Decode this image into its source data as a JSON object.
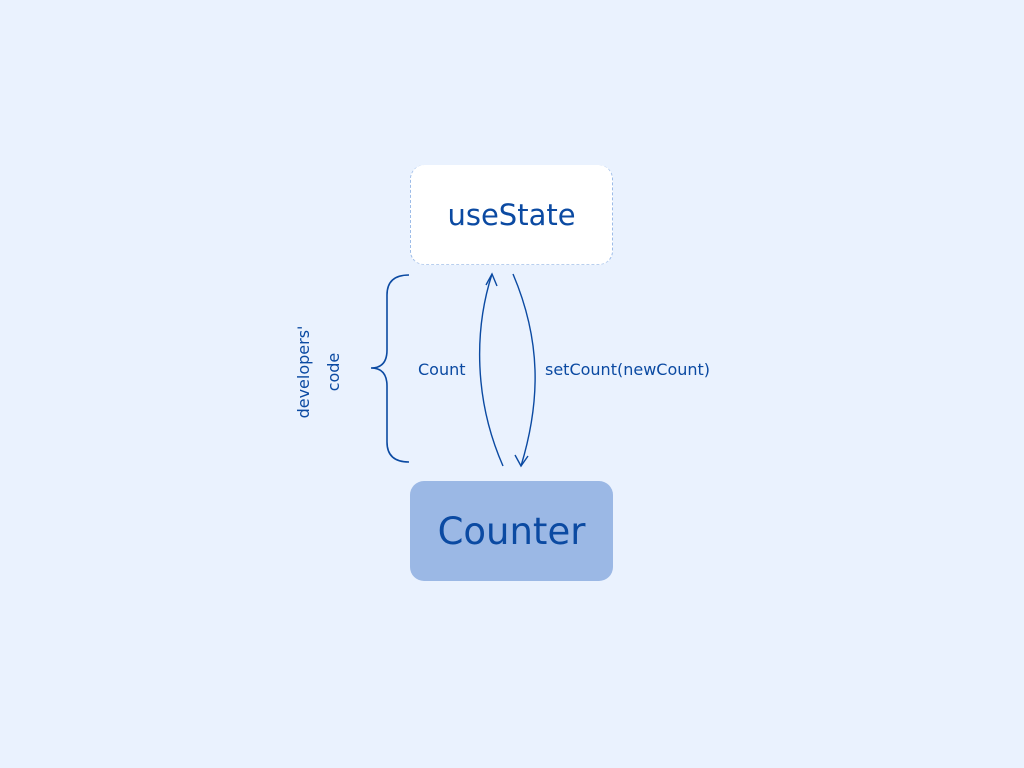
{
  "diagram": {
    "top_node": {
      "label": "useState"
    },
    "bottom_node": {
      "label": "Counter"
    },
    "edges": {
      "up_label": "Count",
      "down_label": "setCount(newCount)"
    },
    "brace": {
      "line1": "developers'",
      "line2": "code"
    }
  },
  "colors": {
    "background": "#eaf2fe",
    "text": "#0b4aa2",
    "top_node_fill": "#ffffff",
    "bottom_node_fill": "#9bb8e5"
  }
}
